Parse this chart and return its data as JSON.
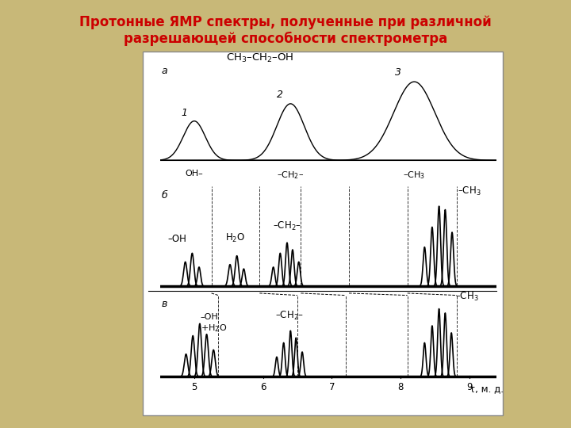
{
  "title": "Протонные ЯМР спектры, полученные при различной\nразрешающей способности спектрометра",
  "title_color": "#cc0000",
  "background_color": "#c8b878",
  "panel_bg": "#ffffff",
  "xlabel": "τ, м. д.",
  "xmin": 4.5,
  "xmax": 9.4,
  "label_a": "а",
  "label_b": "б",
  "label_v": "в",
  "formula": "CH$_3$–CH$_2$–OH"
}
